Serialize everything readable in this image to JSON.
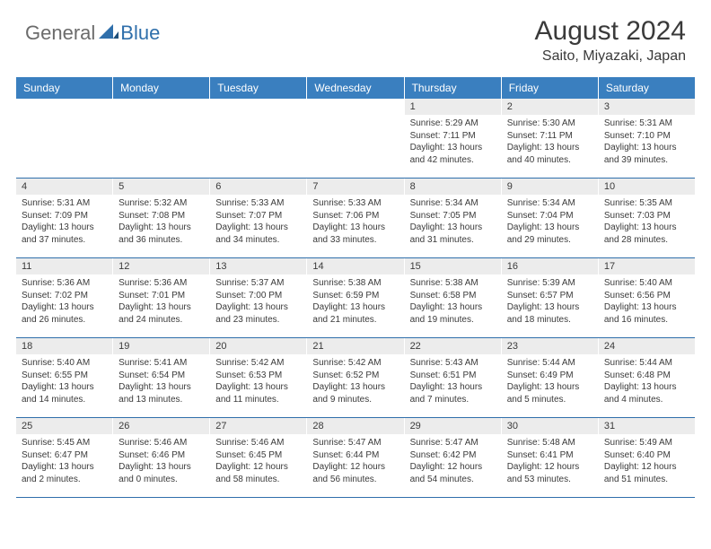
{
  "brand": {
    "general": "General",
    "blue": "Blue"
  },
  "title": "August 2024",
  "subtitle": "Saito, Miyazaki, Japan",
  "colors": {
    "header_bg": "#3a7fbf",
    "header_text": "#ffffff",
    "daynum_bg": "#ececec",
    "row_border": "#2f6fab",
    "text": "#3a3a3a"
  },
  "weekdays": [
    "Sunday",
    "Monday",
    "Tuesday",
    "Wednesday",
    "Thursday",
    "Friday",
    "Saturday"
  ],
  "weeks": [
    [
      {
        "day": "",
        "lines": []
      },
      {
        "day": "",
        "lines": []
      },
      {
        "day": "",
        "lines": []
      },
      {
        "day": "",
        "lines": []
      },
      {
        "day": "1",
        "lines": [
          "Sunrise: 5:29 AM",
          "Sunset: 7:11 PM",
          "Daylight: 13 hours and 42 minutes."
        ]
      },
      {
        "day": "2",
        "lines": [
          "Sunrise: 5:30 AM",
          "Sunset: 7:11 PM",
          "Daylight: 13 hours and 40 minutes."
        ]
      },
      {
        "day": "3",
        "lines": [
          "Sunrise: 5:31 AM",
          "Sunset: 7:10 PM",
          "Daylight: 13 hours and 39 minutes."
        ]
      }
    ],
    [
      {
        "day": "4",
        "lines": [
          "Sunrise: 5:31 AM",
          "Sunset: 7:09 PM",
          "Daylight: 13 hours and 37 minutes."
        ]
      },
      {
        "day": "5",
        "lines": [
          "Sunrise: 5:32 AM",
          "Sunset: 7:08 PM",
          "Daylight: 13 hours and 36 minutes."
        ]
      },
      {
        "day": "6",
        "lines": [
          "Sunrise: 5:33 AM",
          "Sunset: 7:07 PM",
          "Daylight: 13 hours and 34 minutes."
        ]
      },
      {
        "day": "7",
        "lines": [
          "Sunrise: 5:33 AM",
          "Sunset: 7:06 PM",
          "Daylight: 13 hours and 33 minutes."
        ]
      },
      {
        "day": "8",
        "lines": [
          "Sunrise: 5:34 AM",
          "Sunset: 7:05 PM",
          "Daylight: 13 hours and 31 minutes."
        ]
      },
      {
        "day": "9",
        "lines": [
          "Sunrise: 5:34 AM",
          "Sunset: 7:04 PM",
          "Daylight: 13 hours and 29 minutes."
        ]
      },
      {
        "day": "10",
        "lines": [
          "Sunrise: 5:35 AM",
          "Sunset: 7:03 PM",
          "Daylight: 13 hours and 28 minutes."
        ]
      }
    ],
    [
      {
        "day": "11",
        "lines": [
          "Sunrise: 5:36 AM",
          "Sunset: 7:02 PM",
          "Daylight: 13 hours and 26 minutes."
        ]
      },
      {
        "day": "12",
        "lines": [
          "Sunrise: 5:36 AM",
          "Sunset: 7:01 PM",
          "Daylight: 13 hours and 24 minutes."
        ]
      },
      {
        "day": "13",
        "lines": [
          "Sunrise: 5:37 AM",
          "Sunset: 7:00 PM",
          "Daylight: 13 hours and 23 minutes."
        ]
      },
      {
        "day": "14",
        "lines": [
          "Sunrise: 5:38 AM",
          "Sunset: 6:59 PM",
          "Daylight: 13 hours and 21 minutes."
        ]
      },
      {
        "day": "15",
        "lines": [
          "Sunrise: 5:38 AM",
          "Sunset: 6:58 PM",
          "Daylight: 13 hours and 19 minutes."
        ]
      },
      {
        "day": "16",
        "lines": [
          "Sunrise: 5:39 AM",
          "Sunset: 6:57 PM",
          "Daylight: 13 hours and 18 minutes."
        ]
      },
      {
        "day": "17",
        "lines": [
          "Sunrise: 5:40 AM",
          "Sunset: 6:56 PM",
          "Daylight: 13 hours and 16 minutes."
        ]
      }
    ],
    [
      {
        "day": "18",
        "lines": [
          "Sunrise: 5:40 AM",
          "Sunset: 6:55 PM",
          "Daylight: 13 hours and 14 minutes."
        ]
      },
      {
        "day": "19",
        "lines": [
          "Sunrise: 5:41 AM",
          "Sunset: 6:54 PM",
          "Daylight: 13 hours and 13 minutes."
        ]
      },
      {
        "day": "20",
        "lines": [
          "Sunrise: 5:42 AM",
          "Sunset: 6:53 PM",
          "Daylight: 13 hours and 11 minutes."
        ]
      },
      {
        "day": "21",
        "lines": [
          "Sunrise: 5:42 AM",
          "Sunset: 6:52 PM",
          "Daylight: 13 hours and 9 minutes."
        ]
      },
      {
        "day": "22",
        "lines": [
          "Sunrise: 5:43 AM",
          "Sunset: 6:51 PM",
          "Daylight: 13 hours and 7 minutes."
        ]
      },
      {
        "day": "23",
        "lines": [
          "Sunrise: 5:44 AM",
          "Sunset: 6:49 PM",
          "Daylight: 13 hours and 5 minutes."
        ]
      },
      {
        "day": "24",
        "lines": [
          "Sunrise: 5:44 AM",
          "Sunset: 6:48 PM",
          "Daylight: 13 hours and 4 minutes."
        ]
      }
    ],
    [
      {
        "day": "25",
        "lines": [
          "Sunrise: 5:45 AM",
          "Sunset: 6:47 PM",
          "Daylight: 13 hours and 2 minutes."
        ]
      },
      {
        "day": "26",
        "lines": [
          "Sunrise: 5:46 AM",
          "Sunset: 6:46 PM",
          "Daylight: 13 hours and 0 minutes."
        ]
      },
      {
        "day": "27",
        "lines": [
          "Sunrise: 5:46 AM",
          "Sunset: 6:45 PM",
          "Daylight: 12 hours and 58 minutes."
        ]
      },
      {
        "day": "28",
        "lines": [
          "Sunrise: 5:47 AM",
          "Sunset: 6:44 PM",
          "Daylight: 12 hours and 56 minutes."
        ]
      },
      {
        "day": "29",
        "lines": [
          "Sunrise: 5:47 AM",
          "Sunset: 6:42 PM",
          "Daylight: 12 hours and 54 minutes."
        ]
      },
      {
        "day": "30",
        "lines": [
          "Sunrise: 5:48 AM",
          "Sunset: 6:41 PM",
          "Daylight: 12 hours and 53 minutes."
        ]
      },
      {
        "day": "31",
        "lines": [
          "Sunrise: 5:49 AM",
          "Sunset: 6:40 PM",
          "Daylight: 12 hours and 51 minutes."
        ]
      }
    ]
  ]
}
